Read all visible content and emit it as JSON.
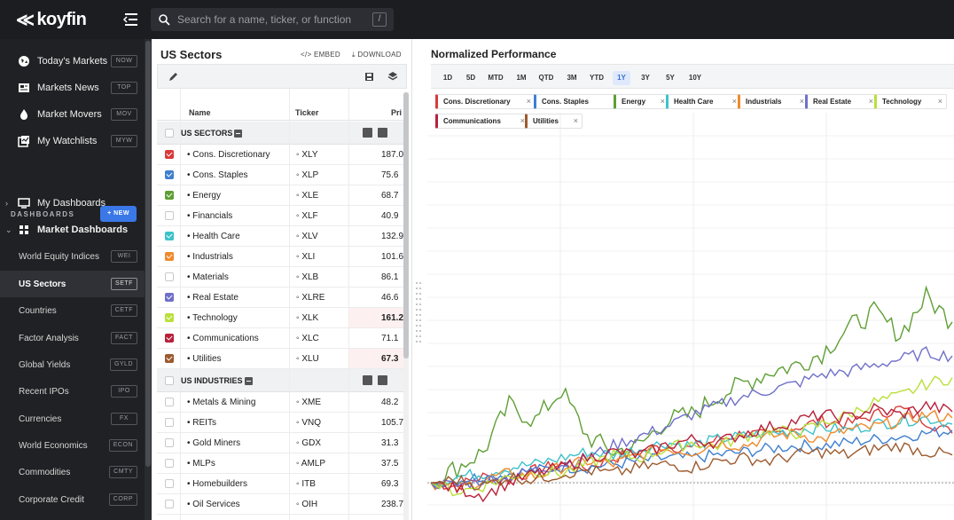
{
  "app": {
    "brand": "koyfin",
    "search_placeholder": "Search for a name, ticker, or function",
    "search_shortcut": "/"
  },
  "sidebar": {
    "top_items": [
      {
        "label": "Today's Markets",
        "badge": "NOW",
        "icon": "globe-icon"
      },
      {
        "label": "Markets News",
        "badge": "TOP",
        "icon": "newspaper-icon"
      },
      {
        "label": "Market Movers",
        "badge": "MOV",
        "icon": "flame-icon"
      },
      {
        "label": "My Watchlists",
        "badge": "MYW",
        "icon": "watchlist-icon"
      }
    ],
    "dashboards_label": "DASHBOARDS",
    "new_label": "+ NEW",
    "my_dashboards": "My Dashboards",
    "market_dashboards": "Market Dashboards",
    "sub_items": [
      {
        "label": "World Equity Indices",
        "badge": "WEI"
      },
      {
        "label": "US Sectors",
        "badge": "SETF",
        "active": true
      },
      {
        "label": "Countries",
        "badge": "CETF"
      },
      {
        "label": "Factor Analysis",
        "badge": "FACT"
      },
      {
        "label": "Global Yields",
        "badge": "GYLD"
      },
      {
        "label": "Recent IPOs",
        "badge": "IPO"
      },
      {
        "label": "Currencies",
        "badge": "FX"
      },
      {
        "label": "World Economics",
        "badge": "ECON"
      },
      {
        "label": "Commodities",
        "badge": "CMTY"
      },
      {
        "label": "Corporate Credit",
        "badge": "CORP"
      }
    ]
  },
  "panel": {
    "title": "US Sectors",
    "embed": "EMBED",
    "download": "DOWNLOAD",
    "columns": {
      "name": "Name",
      "ticker": "Ticker",
      "price": "Pri"
    },
    "groups": [
      {
        "name": "US SECTORS",
        "rows": [
          {
            "name": "• Cons. Discretionary",
            "ticker": "◦ XLY",
            "price": "187.0",
            "checked": true,
            "color": "#d93a3a"
          },
          {
            "name": "• Cons. Staples",
            "ticker": "◦ XLP",
            "price": "75.6",
            "checked": true,
            "color": "#3f7fcf"
          },
          {
            "name": "• Energy",
            "ticker": "◦ XLE",
            "price": "68.7",
            "checked": true,
            "color": "#5f9f35"
          },
          {
            "name": "• Financials",
            "ticker": "◦ XLF",
            "price": "40.9",
            "checked": false,
            "color": ""
          },
          {
            "name": "• Health Care",
            "ticker": "◦ XLV",
            "price": "132.9",
            "checked": true,
            "color": "#3cc3c9"
          },
          {
            "name": "• Industrials",
            "ticker": "◦ XLI",
            "price": "101.6",
            "checked": true,
            "color": "#f08a2c"
          },
          {
            "name": "• Materials",
            "ticker": "◦ XLB",
            "price": "86.1",
            "checked": false,
            "color": ""
          },
          {
            "name": "• Real Estate",
            "ticker": "◦ XLRE",
            "price": "46.6",
            "checked": true,
            "color": "#6f6fc9"
          },
          {
            "name": "• Technology",
            "ticker": "◦ XLK",
            "price": "161.2",
            "checked": true,
            "color": "#b9e03a",
            "bold": true
          },
          {
            "name": "• Communications",
            "ticker": "◦ XLC",
            "price": "71.1",
            "checked": true,
            "color": "#b8203a"
          },
          {
            "name": "• Utilities",
            "ticker": "◦ XLU",
            "price": "67.3",
            "checked": true,
            "color": "#9c5a2e",
            "bold": true
          }
        ]
      },
      {
        "name": "US INDUSTRIES",
        "rows": [
          {
            "name": "• Metals & Mining",
            "ticker": "◦ XME",
            "price": "48.2",
            "checked": false,
            "color": ""
          },
          {
            "name": "• REITs",
            "ticker": "◦ VNQ",
            "price": "105.7",
            "checked": false,
            "color": ""
          },
          {
            "name": "• Gold Miners",
            "ticker": "◦ GDX",
            "price": "31.3",
            "checked": false,
            "color": ""
          },
          {
            "name": "• MLPs",
            "ticker": "◦ AMLP",
            "price": "37.5",
            "checked": false,
            "color": ""
          },
          {
            "name": "• Homebuilders",
            "ticker": "◦ ITB",
            "price": "69.3",
            "checked": false,
            "color": ""
          },
          {
            "name": "• Oil Services",
            "ticker": "◦ OIH",
            "price": "238.7",
            "checked": false,
            "color": ""
          }
        ]
      }
    ]
  },
  "chart": {
    "title": "Normalized Performance",
    "ranges": [
      "1D",
      "5D",
      "MTD",
      "1M",
      "QTD",
      "3M",
      "YTD",
      "1Y",
      "3Y",
      "5Y",
      "10Y"
    ],
    "active_range": "1Y",
    "remove_glyph": "×"
  },
  "chart_data": {
    "type": "line",
    "title": "Normalized Performance",
    "xlabel": "",
    "ylabel": "",
    "series": [
      {
        "name": "Cons. Discretionary",
        "color": "#d93a3a",
        "values": [
          0,
          -1,
          2,
          1,
          4,
          6,
          5,
          8,
          10,
          12,
          11,
          14,
          16,
          15,
          18,
          20,
          19,
          22,
          24,
          20,
          16
        ]
      },
      {
        "name": "Cons. Staples",
        "color": "#3f7fcf",
        "values": [
          0,
          1,
          2,
          3,
          4,
          5,
          5,
          6,
          7,
          8,
          8,
          9,
          10,
          11,
          12,
          12,
          13,
          14,
          15,
          16,
          17
        ]
      },
      {
        "name": "Energy",
        "color": "#5f9f35",
        "values": [
          0,
          5,
          10,
          25,
          20,
          30,
          15,
          10,
          12,
          20,
          22,
          28,
          32,
          36,
          38,
          42,
          50,
          55,
          48,
          60,
          52
        ]
      },
      {
        "name": "Health Care",
        "color": "#3cc3c9",
        "values": [
          0,
          2,
          3,
          5,
          6,
          8,
          10,
          9,
          11,
          13,
          12,
          14,
          15,
          16,
          17,
          18,
          17,
          19,
          20,
          21,
          19
        ]
      },
      {
        "name": "Industrials",
        "color": "#f08a2c",
        "values": [
          0,
          -2,
          1,
          3,
          2,
          5,
          7,
          6,
          9,
          11,
          10,
          13,
          12,
          15,
          16,
          14,
          17,
          18,
          20,
          22,
          21
        ]
      },
      {
        "name": "Real Estate",
        "color": "#6f6fc9",
        "values": [
          0,
          -1,
          1,
          2,
          4,
          6,
          8,
          12,
          15,
          18,
          22,
          25,
          28,
          30,
          32,
          35,
          36,
          38,
          40,
          42,
          41
        ]
      },
      {
        "name": "Technology",
        "color": "#b9e03a",
        "values": [
          0,
          -3,
          -1,
          2,
          4,
          3,
          6,
          9,
          8,
          11,
          13,
          12,
          15,
          17,
          16,
          19,
          22,
          26,
          28,
          32,
          34
        ]
      },
      {
        "name": "Communications",
        "color": "#b8203a",
        "values": [
          0,
          -2,
          -4,
          0,
          3,
          5,
          8,
          10,
          9,
          12,
          14,
          13,
          16,
          18,
          20,
          22,
          21,
          24,
          22,
          25,
          23
        ]
      },
      {
        "name": "Utilities",
        "color": "#9c5a2e",
        "values": [
          0,
          1,
          -1,
          2,
          1,
          3,
          4,
          3,
          5,
          6,
          5,
          7,
          8,
          7,
          9,
          10,
          9,
          11,
          12,
          10,
          9
        ]
      }
    ],
    "grid": true
  }
}
